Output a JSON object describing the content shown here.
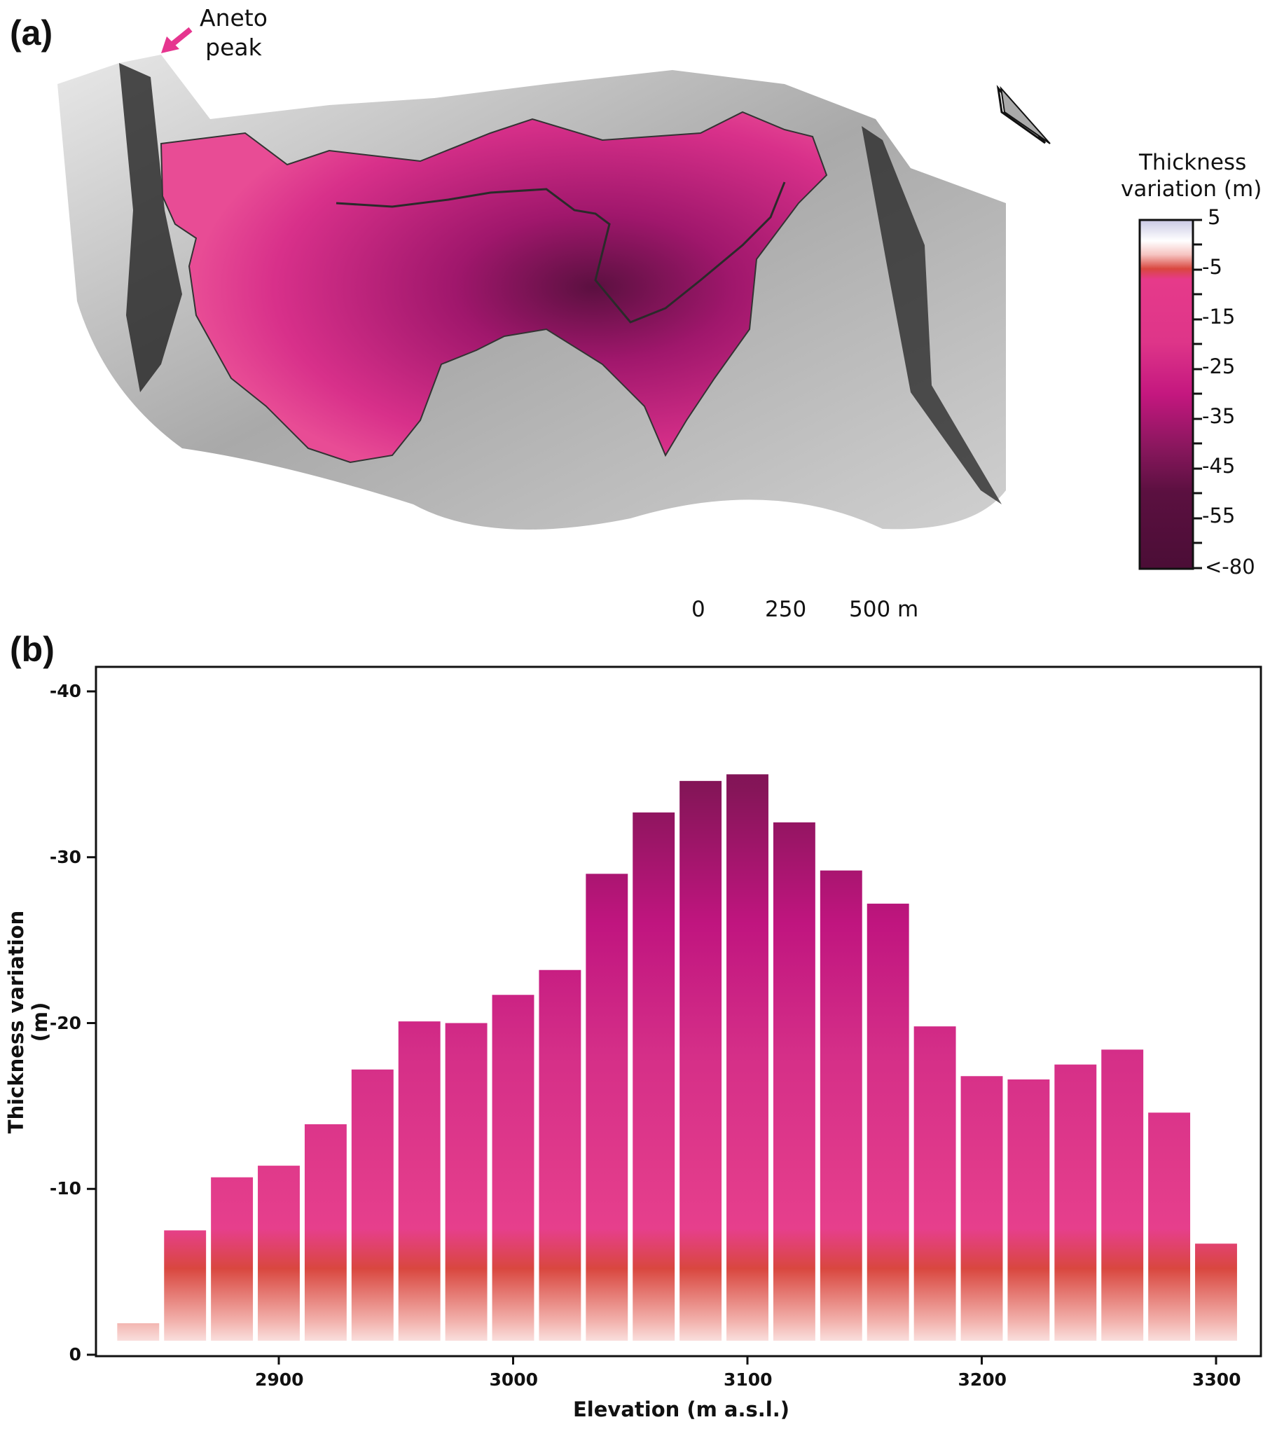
{
  "panel_a": {
    "label": "(a)",
    "annotation": "Aneto\npeak",
    "annotation_color": "#e6358f",
    "colorbar": {
      "title_line1": "Thickness",
      "title_line2": "variation (m)",
      "ticks": [
        "5",
        "-5",
        "-15",
        "-25",
        "-35",
        "-45",
        "-55",
        "<-80"
      ],
      "colors": [
        "#c9c8e4",
        "#ffffff",
        "#f6c3c0",
        "#d9473f",
        "#e63a8a",
        "#c4177f",
        "#8a175e",
        "#5b1040",
        "#4b0d36"
      ]
    },
    "scale_bar": {
      "labels": [
        "0",
        "250",
        "500 m"
      ]
    },
    "north_arrow": "north-arrow-icon"
  },
  "panel_b": {
    "label": "(b)"
  },
  "chart_data": {
    "type": "bar",
    "xlabel": "Elevation (m a.s.l.)",
    "ylabel": "Thickness variation (m)",
    "x": [
      2840,
      2860,
      2880,
      2900,
      2920,
      2940,
      2960,
      2980,
      3000,
      3020,
      3040,
      3060,
      3080,
      3100,
      3120,
      3140,
      3160,
      3180,
      3200,
      3220,
      3240,
      3260,
      3280,
      3300
    ],
    "values": [
      -1.9,
      -7.5,
      -10.7,
      -11.4,
      -13.9,
      -17.2,
      -20.1,
      -20.0,
      -21.7,
      -23.2,
      -29.0,
      -32.7,
      -34.6,
      -35.0,
      -32.1,
      -29.2,
      -27.2,
      -19.8,
      -16.8,
      -16.6,
      -17.5,
      -18.4,
      -14.6,
      -6.7
    ],
    "xticks": [
      "2900",
      "3000",
      "3100",
      "3200",
      "3300"
    ],
    "yticks": [
      "-40",
      "-30",
      "-20",
      "-10",
      "0"
    ],
    "ylim": [
      0,
      -40
    ],
    "y_inverted": true,
    "grid": false
  }
}
